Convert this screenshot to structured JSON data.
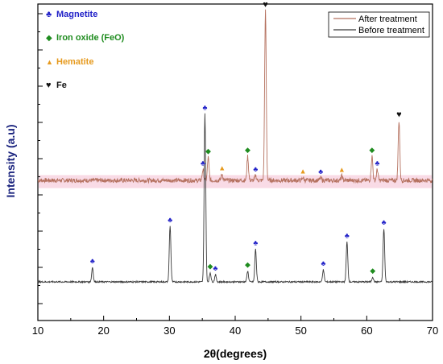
{
  "chart_data": {
    "type": "line",
    "title": "",
    "xlabel": "2θ(degrees)",
    "ylabel": "Intensity (a.u)",
    "xlim": [
      10,
      70
    ],
    "xticks": [
      10,
      20,
      30,
      40,
      50,
      60,
      70
    ],
    "y_tick_labels": "none",
    "grid": false,
    "legend": {
      "placement": "top-right",
      "entries": [
        {
          "name": "After treatment",
          "color": "#b5715f"
        },
        {
          "name": "Before treatment",
          "color": "#3a3a3a"
        }
      ]
    },
    "phase_key": [
      {
        "symbol": "♣",
        "label": "Magnetite",
        "color": "#2121c8"
      },
      {
        "symbol": "◆",
        "label": "Iron oxide (FeO)",
        "color": "#1f8c1f"
      },
      {
        "symbol": "▲",
        "label": "Hematite",
        "color": "#e69a1e"
      },
      {
        "symbol": "♥",
        "label": "Fe",
        "color": "#111111"
      }
    ],
    "series": [
      {
        "name": "After treatment",
        "color": "#b5715f",
        "baseline": 0.6,
        "peaks": [
          {
            "x": 35.1,
            "height": 0.45,
            "phase": "Magnetite"
          },
          {
            "x": 35.9,
            "height": 0.95,
            "phase": "Iron oxide (FeO)"
          },
          {
            "x": 38.0,
            "height": 0.25,
            "phase": "Hematite"
          },
          {
            "x": 41.9,
            "height": 1.0,
            "phase": "Iron oxide (FeO)"
          },
          {
            "x": 43.1,
            "height": 0.2,
            "phase": "Magnetite"
          },
          {
            "x": 44.6,
            "height": 7.0,
            "phase": "Fe"
          },
          {
            "x": 50.3,
            "height": 0.12,
            "phase": "Hematite"
          },
          {
            "x": 53.0,
            "height": 0.1,
            "phase": "Magnetite"
          },
          {
            "x": 56.2,
            "height": 0.18,
            "phase": "Hematite"
          },
          {
            "x": 60.8,
            "height": 1.0,
            "phase": "Iron oxide (FeO)"
          },
          {
            "x": 61.6,
            "height": 0.45,
            "phase": "Magnetite"
          },
          {
            "x": 64.9,
            "height": 2.45,
            "phase": "Fe"
          }
        ]
      },
      {
        "name": "Before treatment",
        "color": "#3a3a3a",
        "baseline": -3.6,
        "peaks": [
          {
            "x": 18.3,
            "height": 0.6,
            "phase": "Magnetite"
          },
          {
            "x": 30.1,
            "height": 2.3,
            "phase": "Magnetite"
          },
          {
            "x": 35.4,
            "height": 6.95,
            "phase": "Magnetite"
          },
          {
            "x": 36.2,
            "height": 0.38,
            "phase": "Iron oxide (FeO)"
          },
          {
            "x": 37.0,
            "height": 0.3,
            "phase": "Magnetite"
          },
          {
            "x": 41.9,
            "height": 0.45,
            "phase": "Iron oxide (FeO)"
          },
          {
            "x": 43.1,
            "height": 1.35,
            "phase": "Magnetite"
          },
          {
            "x": 53.4,
            "height": 0.5,
            "phase": "Magnetite"
          },
          {
            "x": 57.0,
            "height": 1.65,
            "phase": "Magnetite"
          },
          {
            "x": 60.9,
            "height": 0.2,
            "phase": "Iron oxide (FeO)"
          },
          {
            "x": 62.6,
            "height": 2.2,
            "phase": "Magnetite"
          }
        ]
      }
    ]
  }
}
